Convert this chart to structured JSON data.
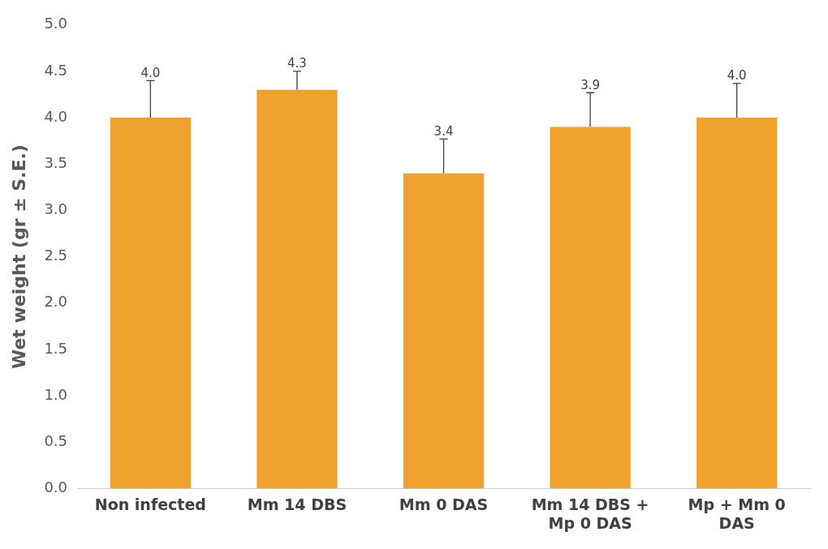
{
  "chart_data": {
    "type": "bar",
    "ylabel": "Wet weight (gr ± S.E.)",
    "categories": [
      "Non infected",
      "Mm 14 DBS",
      "Mm 0 DAS",
      "Mm 14 DBS + Mp 0 DAS",
      "Mp + Mm 0 DAS"
    ],
    "values": [
      4.0,
      4.3,
      3.4,
      3.9,
      4.0
    ],
    "errors": [
      [
        4.0,
        4.4
      ],
      [
        4.3,
        4.5
      ],
      [
        3.4,
        3.77
      ],
      [
        3.9,
        4.27
      ],
      [
        4.0,
        4.37
      ]
    ],
    "value_labels": [
      "4.0",
      "4.3",
      "3.4",
      "3.9",
      "4.0"
    ],
    "color": "#f0a22e",
    "ylim": [
      0,
      5
    ],
    "yticks": [
      {
        "value": 0,
        "label": "0.0"
      },
      0.5,
      {
        "value": 1,
        "label": "1.0"
      },
      1.5,
      {
        "value": 2,
        "label": "2.0"
      },
      2.5,
      {
        "value": 3,
        "label": "3.0"
      },
      3.5,
      {
        "value": 4,
        "label": "4.0"
      },
      4.5,
      {
        "value": 5,
        "label": "5.0"
      }
    ],
    "grid": false,
    "legend": false
  }
}
